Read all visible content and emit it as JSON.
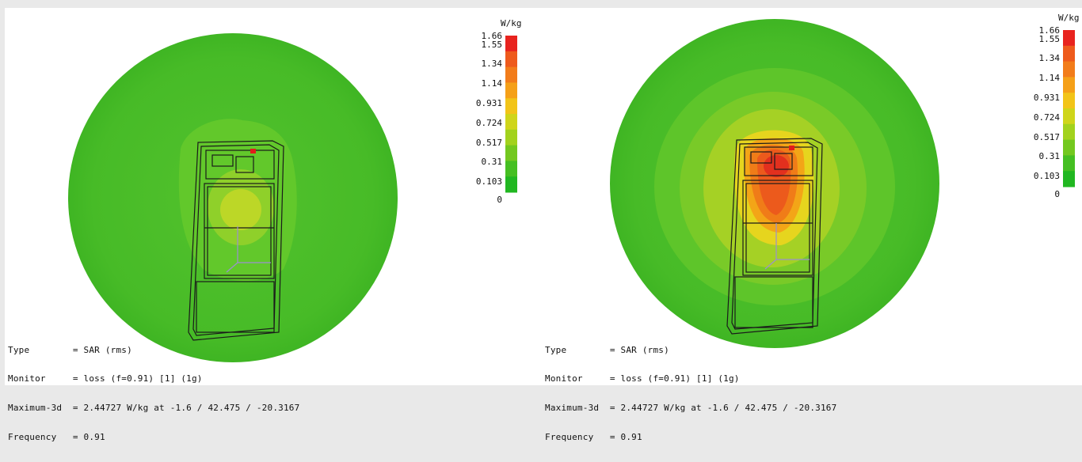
{
  "panels": [
    {
      "colorbar": {
        "unit": "W/kg",
        "ticks": [
          "1.66",
          "1.55",
          "1.34",
          "1.14",
          "0.931",
          "0.724",
          "0.517",
          "0.31",
          "0.103",
          "0"
        ],
        "colors": [
          "#e8231e",
          "#ee5a1c",
          "#f27c1a",
          "#f5a018",
          "#f2c418",
          "#cfd51a",
          "#a2d21d",
          "#73c81f",
          "#45bf22",
          "#21b721"
        ]
      },
      "info": {
        "type_label": "Type",
        "type_value": "= SAR (rms)",
        "monitor_label": "Monitor",
        "monitor_value": "= loss (f=0.91) [1] (1g)",
        "maximum_label": "Maximum-3d",
        "maximum_value": "= 2.44727 W/kg at -1.6 / 42.475 / -20.3167",
        "frequency_label": "Frequency",
        "frequency_value": "= 0.91"
      }
    },
    {
      "colorbar": {
        "unit": "W/kg",
        "ticks": [
          "1.66",
          "1.55",
          "1.34",
          "1.14",
          "0.931",
          "0.724",
          "0.517",
          "0.31",
          "0.103",
          "0"
        ],
        "colors": [
          "#e8231e",
          "#ee5a1c",
          "#f27c1a",
          "#f5a018",
          "#f2c418",
          "#cfd51a",
          "#a2d21d",
          "#73c81f",
          "#45bf22",
          "#21b721"
        ]
      },
      "info": {
        "type_label": "Type",
        "type_value": "= SAR (rms)",
        "monitor_label": "Monitor",
        "monitor_value": "= loss (f=0.91) [1] (1g)",
        "maximum_label": "Maximum-3d",
        "maximum_value": "= 2.44727 W/kg at -1.6 / 42.475 / -20.3167",
        "frequency_label": "Frequency",
        "frequency_value": "= 0.91"
      }
    }
  ],
  "colors": {
    "sphere_base": "#4cbd2a",
    "background": "#ffffff",
    "page_border": "#e9e9e9"
  }
}
